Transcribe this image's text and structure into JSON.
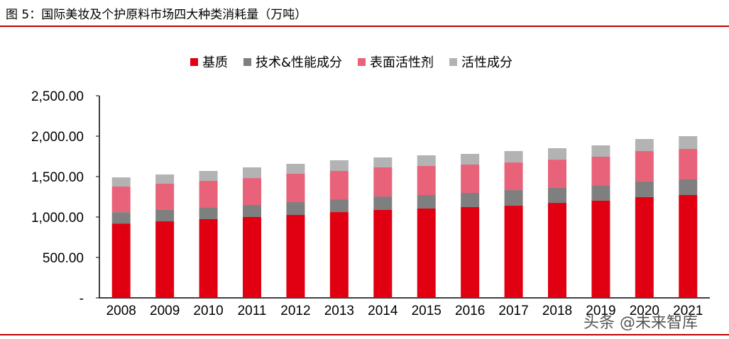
{
  "title": "图 5：国际美妆及个护原料市场四大种类消耗量（万吨）",
  "watermark": "头条 @未来智库",
  "chart_data": {
    "type": "bar",
    "stacked": true,
    "title": "",
    "xlabel": "",
    "ylabel": "",
    "ylim": [
      0,
      2500
    ],
    "yticks": [
      "-",
      "500.00",
      "1,000.00",
      "1,500.00",
      "2,000.00",
      "2,500.00"
    ],
    "legend_position": "top",
    "categories": [
      "2008",
      "2009",
      "2010",
      "2011",
      "2012",
      "2013",
      "2014",
      "2015",
      "2016",
      "2017",
      "2018",
      "2019",
      "2020",
      "2021"
    ],
    "series": [
      {
        "name": "基质",
        "color": "#e00012",
        "values": [
          920,
          947,
          974,
          1000,
          1026,
          1061,
          1088,
          1105,
          1123,
          1140,
          1175,
          1202,
          1246,
          1272
        ]
      },
      {
        "name": "技术&性能成分",
        "color": "#7f7f7f",
        "values": [
          140,
          141,
          140,
          149,
          158,
          158,
          166,
          167,
          175,
          193,
          185,
          184,
          193,
          193
        ]
      },
      {
        "name": "表面活性剂",
        "color": "#e8637a",
        "values": [
          317,
          324,
          333,
          333,
          351,
          351,
          360,
          360,
          351,
          342,
          350,
          360,
          377,
          377
        ]
      },
      {
        "name": "活性成分",
        "color": "#b3b3b3",
        "values": [
          113,
          114,
          123,
          132,
          123,
          132,
          123,
          131,
          132,
          141,
          141,
          140,
          149,
          158
        ]
      }
    ]
  }
}
